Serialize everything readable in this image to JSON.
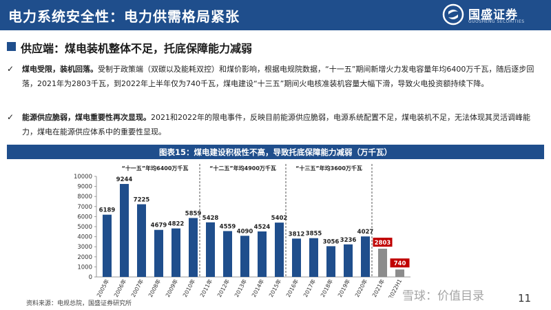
{
  "header": {
    "title": "电力系统安全性：电力供需格局紧张"
  },
  "logo": {
    "name": "国盛证券",
    "sub": "GUOSHENG SECURITIES"
  },
  "section": {
    "title": "供应端：煤电装机整体不足，托底保障能力减弱"
  },
  "bullets": [
    {
      "bold": "煤电受限，装机回落。",
      "text": "受制于政策端（双碳以及能耗双控）和煤价影响，根据电规院数据，“十一五”期间新增火力发电容量年均6400万千瓦，随后逐步回落，2021年为2803千瓦，到2022年上半年仅为740千瓦，煤电建设“十三五”期间火电核准装机容量大幅下滑，导致火电投资额持续下降。"
    },
    {
      "bold": "能源供应脆弱，煤电重要性再次显现。",
      "text": "2021和2022年的限电事件，反映目前能源供应脆弱，电源系统配置不足，煤电装机不足，无法体现其灵活调峰能力，煤电在能源供应体系中的重要性显现。"
    }
  ],
  "figure": {
    "title": "图表15：煤电建设积极性不高，导致托底保障能力减弱（万千瓦）"
  },
  "chart_data": {
    "type": "bar",
    "categories": [
      "2005年",
      "2006年",
      "2007年",
      "2008年",
      "2009年",
      "2010年",
      "2011年",
      "2012年",
      "2013年",
      "2014年",
      "2015年",
      "2016年",
      "2017年",
      "2018年",
      "2019年",
      "2020年",
      "2021年",
      "2022H1"
    ],
    "values": [
      6189,
      9244,
      7225,
      4679,
      4822,
      5859,
      5428,
      4559,
      4090,
      4524,
      5402,
      3812,
      3855,
      3056,
      3236,
      4027,
      2803,
      740
    ],
    "ylim": [
      0,
      10000
    ],
    "yticks": [
      0,
      1000,
      2000,
      3000,
      4000,
      5000,
      6000,
      7000,
      8000,
      9000,
      10000
    ],
    "grid": false,
    "periods": [
      {
        "label": "“十一五”年均6400万千瓦"
      },
      {
        "label": "“十二五”年均4900万千瓦"
      },
      {
        "label": "“十三五”年均3600万千瓦"
      }
    ],
    "colors": {
      "bar": "#1f4e8c",
      "highlight": "#8c8c8c",
      "highlight_label": "#c00000"
    }
  },
  "source": {
    "text": "资料来源：电规总院，国盛证券研究所"
  },
  "page": {
    "number": "11"
  },
  "watermark": {
    "text": "雪球：价值目录"
  }
}
